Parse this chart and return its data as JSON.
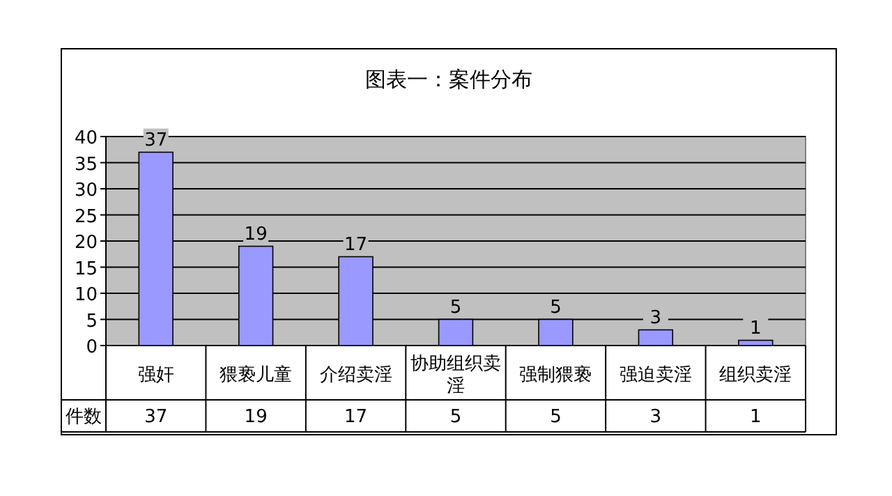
{
  "chart_data": {
    "type": "bar",
    "title": "图表一：案件分布",
    "categories": [
      "强奸",
      "猥亵儿童",
      "介绍卖淫",
      "协助组织卖淫",
      "强制猥亵",
      "强迫卖淫",
      "组织卖淫"
    ],
    "series": [
      {
        "name": "件数",
        "color": "#9999ff",
        "values": [
          37,
          19,
          17,
          5,
          5,
          3,
          1
        ],
        "value_labels": [
          "37",
          "19",
          "17",
          "5",
          "5",
          "3",
          "1"
        ]
      }
    ],
    "ylim": [
      0,
      40
    ],
    "yticks": [
      0,
      5,
      10,
      15,
      20,
      25,
      30,
      35,
      40
    ],
    "grid": "y",
    "data_labels": true
  }
}
